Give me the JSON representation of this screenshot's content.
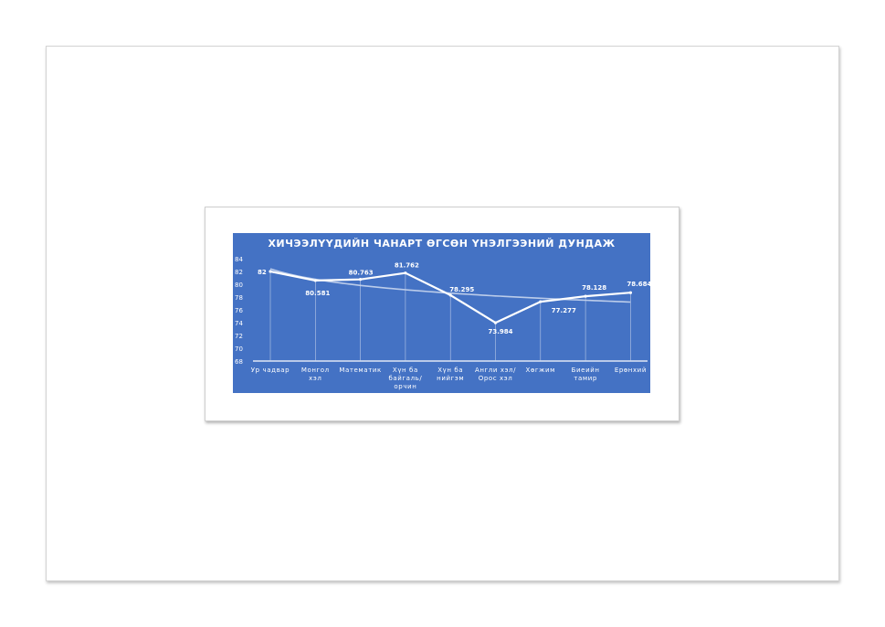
{
  "chart_data": {
    "type": "line",
    "title": "ХИЧЭЭЛҮҮДИЙН ЧАНАРТ  ӨГСӨН ҮНЭЛГЭЭНИЙ ДУНДАЖ",
    "categories": [
      [
        "Ур чадвар"
      ],
      [
        "Монгол",
        "хэл"
      ],
      [
        "Математик"
      ],
      [
        "Хүн ба",
        "байгаль/",
        "орчин"
      ],
      [
        "Хүн ба",
        "нийгэм"
      ],
      [
        "Англи хэл/",
        "Орос хэл"
      ],
      [
        "Хөгжим"
      ],
      [
        "Биеийн",
        "тамир"
      ],
      [
        "Ерөнхий"
      ]
    ],
    "values": [
      82,
      80.581,
      80.763,
      81.762,
      78.295,
      73.984,
      77.277,
      78.128,
      78.684
    ],
    "data_labels": [
      "82",
      "80.581",
      "80.763",
      "81.762",
      "78.295",
      "73.984",
      "77.277",
      "78.128",
      "78.684"
    ],
    "trendline": true,
    "ylim": [
      68,
      84
    ],
    "yticks": [
      "68",
      "70",
      "72",
      "74",
      "76",
      "78",
      "80",
      "82",
      "84"
    ],
    "xlabel": "",
    "ylabel": "",
    "grid": false,
    "colors": {
      "background": "#4472c4",
      "line": "#ffffff",
      "trend": "#c9d6ee",
      "drop_line": "#d5def0"
    }
  }
}
